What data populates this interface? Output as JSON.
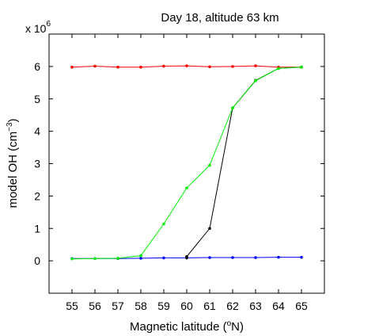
{
  "chart_data": {
    "type": "line",
    "title": "Day 18, altitude 63 km",
    "xlabel": {
      "pre": "Magnetic latitude (",
      "sup": "o",
      "post": "N)"
    },
    "ylabel": {
      "pre": "model OH (cm",
      "sup": "−3",
      "post": ")"
    },
    "y_exponent": {
      "base": "x 10",
      "power": "6"
    },
    "xlim": [
      54,
      66
    ],
    "ylim": [
      -1,
      7
    ],
    "xticks": [
      55,
      56,
      57,
      58,
      59,
      60,
      61,
      62,
      63,
      64,
      65
    ],
    "yticks": [
      0,
      1,
      2,
      3,
      4,
      5,
      6
    ],
    "grid": false,
    "series": [
      {
        "color": "#ff0000",
        "x": [
          55,
          56,
          57,
          58,
          59,
          60,
          61,
          62,
          63,
          64,
          65
        ],
        "y": [
          5.98,
          6.01,
          5.98,
          5.98,
          6.01,
          6.02,
          5.99,
          6.0,
          6.02,
          5.98,
          5.98
        ]
      },
      {
        "color": "#0000ff",
        "x": [
          55,
          56,
          57,
          58,
          59,
          60,
          61,
          62,
          63,
          64,
          65
        ],
        "y": [
          0.07,
          0.07,
          0.07,
          0.08,
          0.09,
          0.09,
          0.1,
          0.1,
          0.1,
          0.11,
          0.11
        ]
      },
      {
        "color": "#000000",
        "x": [
          60,
          60,
          61,
          62,
          63,
          64,
          65
        ],
        "y": [
          0.09,
          0.13,
          1.0,
          4.72,
          5.57,
          5.94,
          5.98
        ]
      },
      {
        "color": "#00ee00",
        "x": [
          55,
          56,
          57,
          58,
          59,
          60,
          61,
          62,
          63,
          64,
          65
        ],
        "y": [
          0.06,
          0.07,
          0.08,
          0.16,
          1.14,
          2.25,
          2.95,
          4.72,
          5.56,
          5.94,
          5.98
        ]
      }
    ]
  }
}
